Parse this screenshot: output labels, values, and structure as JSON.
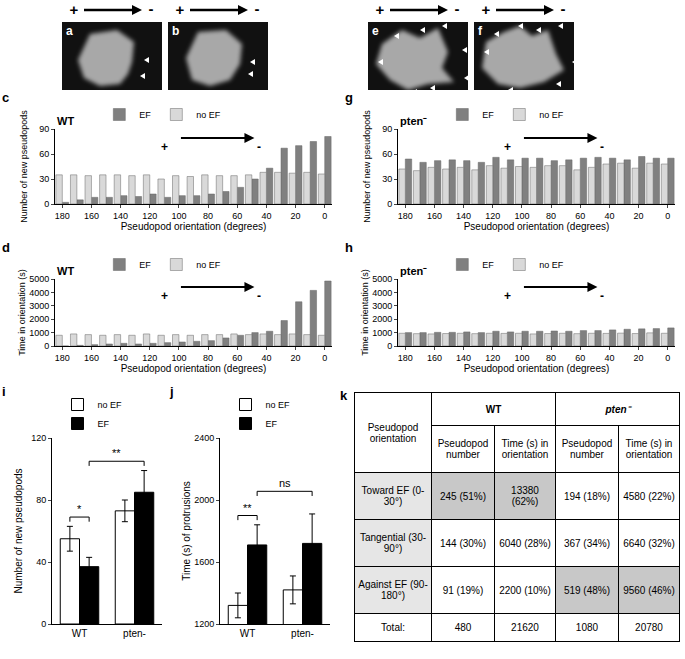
{
  "field_symbols": {
    "plus": "+",
    "minus": "-"
  },
  "image_panels": [
    {
      "label": "a"
    },
    {
      "label": "b"
    },
    {
      "label": "e"
    },
    {
      "label": "f"
    }
  ],
  "chart_data": [
    {
      "label": "c",
      "type": "bar",
      "title": "WT",
      "x": [
        180,
        170,
        160,
        150,
        140,
        130,
        120,
        110,
        100,
        90,
        80,
        70,
        60,
        50,
        40,
        30,
        20,
        10,
        0
      ],
      "series": [
        {
          "name": "EF",
          "color": "#808080",
          "values": [
            2,
            5,
            8,
            8,
            10,
            9,
            12,
            8,
            10,
            10,
            12,
            15,
            20,
            30,
            43,
            67,
            70,
            75,
            81
          ]
        },
        {
          "name": "no EF",
          "color": "#d9d9d9",
          "values": [
            35,
            35,
            34,
            35,
            35,
            34,
            35,
            30,
            34,
            33,
            35,
            34,
            34,
            35,
            38,
            38,
            37,
            38,
            36
          ]
        }
      ],
      "xlabel": "Pseudopod orientation (degrees)",
      "ylabel": "Number of new pseudopods",
      "xlim": [
        185,
        -5
      ],
      "xticks": [
        180,
        160,
        140,
        120,
        100,
        80,
        60,
        40,
        20,
        0
      ],
      "ylim": [
        0,
        90
      ],
      "yticks": [
        0,
        30,
        60,
        90
      ],
      "grid": false,
      "legend": "top"
    },
    {
      "label": "d",
      "type": "bar",
      "title": "WT",
      "x": [
        180,
        170,
        160,
        150,
        140,
        130,
        120,
        110,
        100,
        90,
        80,
        70,
        60,
        50,
        40,
        30,
        20,
        10,
        0
      ],
      "series": [
        {
          "name": "EF",
          "color": "#808080",
          "values": [
            0,
            50,
            100,
            150,
            200,
            150,
            200,
            250,
            300,
            350,
            400,
            600,
            800,
            1000,
            1100,
            1900,
            3300,
            4150,
            4850
          ]
        },
        {
          "name": "no EF",
          "color": "#d9d9d9",
          "values": [
            800,
            900,
            850,
            800,
            850,
            800,
            900,
            800,
            850,
            800,
            850,
            850,
            900,
            850,
            900,
            850,
            900,
            850,
            800
          ]
        }
      ],
      "xlabel": "Pseudopod orientation (degrees)",
      "ylabel": "Time in orientation (s)",
      "xlim": [
        185,
        -5
      ],
      "xticks": [
        180,
        160,
        140,
        120,
        100,
        80,
        60,
        40,
        20,
        0
      ],
      "ylim": [
        0,
        5000
      ],
      "yticks": [
        0,
        1000,
        2000,
        3000,
        4000,
        5000
      ],
      "grid": false,
      "legend": "top"
    },
    {
      "label": "g",
      "type": "bar",
      "title": "pten⁻",
      "x": [
        180,
        170,
        160,
        150,
        140,
        130,
        120,
        110,
        100,
        90,
        80,
        70,
        60,
        50,
        40,
        30,
        20,
        10,
        0
      ],
      "series": [
        {
          "name": "EF",
          "color": "#808080",
          "values": [
            54,
            50,
            52,
            53,
            52,
            50,
            56,
            53,
            55,
            55,
            52,
            53,
            55,
            56,
            55,
            53,
            57,
            55,
            55
          ]
        },
        {
          "name": "no EF",
          "color": "#d9d9d9",
          "values": [
            42,
            40,
            44,
            42,
            44,
            41,
            46,
            43,
            45,
            44,
            46,
            46,
            41,
            44,
            48,
            49,
            43,
            49,
            48
          ]
        }
      ],
      "xlabel": "Pseudopod orientation (degrees)",
      "ylabel": "Number of new pseudopods",
      "xlim": [
        185,
        -5
      ],
      "xticks": [
        180,
        160,
        140,
        120,
        100,
        80,
        60,
        40,
        20,
        0
      ],
      "ylim": [
        0,
        90
      ],
      "yticks": [
        0,
        30,
        60,
        90
      ],
      "grid": false,
      "legend": "top"
    },
    {
      "label": "h",
      "type": "bar",
      "title": "pten⁻",
      "x": [
        180,
        170,
        160,
        150,
        140,
        130,
        120,
        110,
        100,
        90,
        80,
        70,
        60,
        50,
        40,
        30,
        20,
        10,
        0
      ],
      "series": [
        {
          "name": "EF",
          "color": "#808080",
          "values": [
            1000,
            1000,
            1020,
            1020,
            1050,
            1000,
            1100,
            1050,
            1100,
            1100,
            1120,
            1100,
            1150,
            1150,
            1200,
            1250,
            1280,
            1300,
            1350
          ]
        },
        {
          "name": "no EF",
          "color": "#d9d9d9",
          "values": [
            950,
            920,
            900,
            930,
            950,
            920,
            950,
            940,
            950,
            900,
            930,
            950,
            920,
            950,
            940,
            960,
            930,
            980,
            950
          ]
        }
      ],
      "xlabel": "Pseudopod orientation (degrees)",
      "ylabel": "Time in orientation (s)",
      "xlim": [
        185,
        -5
      ],
      "xticks": [
        180,
        160,
        140,
        120,
        100,
        80,
        60,
        40,
        20,
        0
      ],
      "ylim": [
        0,
        5000
      ],
      "yticks": [
        0,
        1000,
        2000,
        3000,
        4000,
        5000
      ],
      "grid": false,
      "legend": "top"
    },
    {
      "label": "i",
      "type": "bar",
      "categories": [
        "WT",
        "pten-"
      ],
      "series": [
        {
          "name": "no EF",
          "color": "#ffffff",
          "values": [
            55,
            73
          ],
          "errors": [
            8,
            7
          ]
        },
        {
          "name": "EF",
          "color": "#000000",
          "values": [
            37,
            85
          ],
          "errors": [
            6,
            14
          ]
        }
      ],
      "ylabel": "Number of new pseudopods",
      "ylim": [
        0,
        120
      ],
      "yticks": [
        0,
        40,
        80,
        120
      ],
      "grid": false,
      "legend": "top",
      "significance": [
        {
          "text": "*",
          "from": [
            "WT",
            "no EF"
          ],
          "to": [
            "WT",
            "EF"
          ]
        },
        {
          "text": "**",
          "from": [
            "WT",
            "EF"
          ],
          "to": [
            "pten-",
            "EF"
          ]
        }
      ]
    },
    {
      "label": "j",
      "type": "bar",
      "categories": [
        "WT",
        "pten-"
      ],
      "series": [
        {
          "name": "no EF",
          "color": "#ffffff",
          "values": [
            1320,
            1420
          ],
          "errors": [
            80,
            90
          ]
        },
        {
          "name": "EF",
          "color": "#000000",
          "values": [
            1710,
            1720
          ],
          "errors": [
            130,
            190
          ]
        }
      ],
      "ylabel": "Time (s) of protrusions",
      "ylim": [
        1200,
        2400
      ],
      "yticks": [
        1200,
        1600,
        2000,
        2400
      ],
      "grid": false,
      "legend": "top",
      "significance": [
        {
          "text": "**",
          "from": [
            "WT",
            "no EF"
          ],
          "to": [
            "WT",
            "EF"
          ]
        },
        {
          "text": "ns",
          "from": [
            "WT",
            "EF"
          ],
          "to": [
            "pten-",
            "EF"
          ]
        }
      ]
    }
  ],
  "table": {
    "label": "k",
    "corner": "Pseudopod orientation",
    "groups": [
      "WT",
      "pten⁻"
    ],
    "subheaders": [
      "Pseudopod number",
      "Time (s) in orientation",
      "Pseudopod number",
      "Time (s) in orientation"
    ],
    "rows": [
      [
        "Toward EF (0-30°)",
        "245 (51%)",
        "13380 (62%)",
        "194 (18%)",
        "4580 (22%)"
      ],
      [
        "Tangential (30-90°)",
        "144 (30%)",
        "6040 (28%)",
        "367 (34%)",
        "6640 (32%)"
      ],
      [
        "Against EF (90-180°)",
        "91 (19%)",
        "2200 (10%)",
        "519 (48%)",
        "9560 (46%)"
      ],
      [
        "Total:",
        "480",
        "21620",
        "1080",
        "20780"
      ]
    ]
  }
}
